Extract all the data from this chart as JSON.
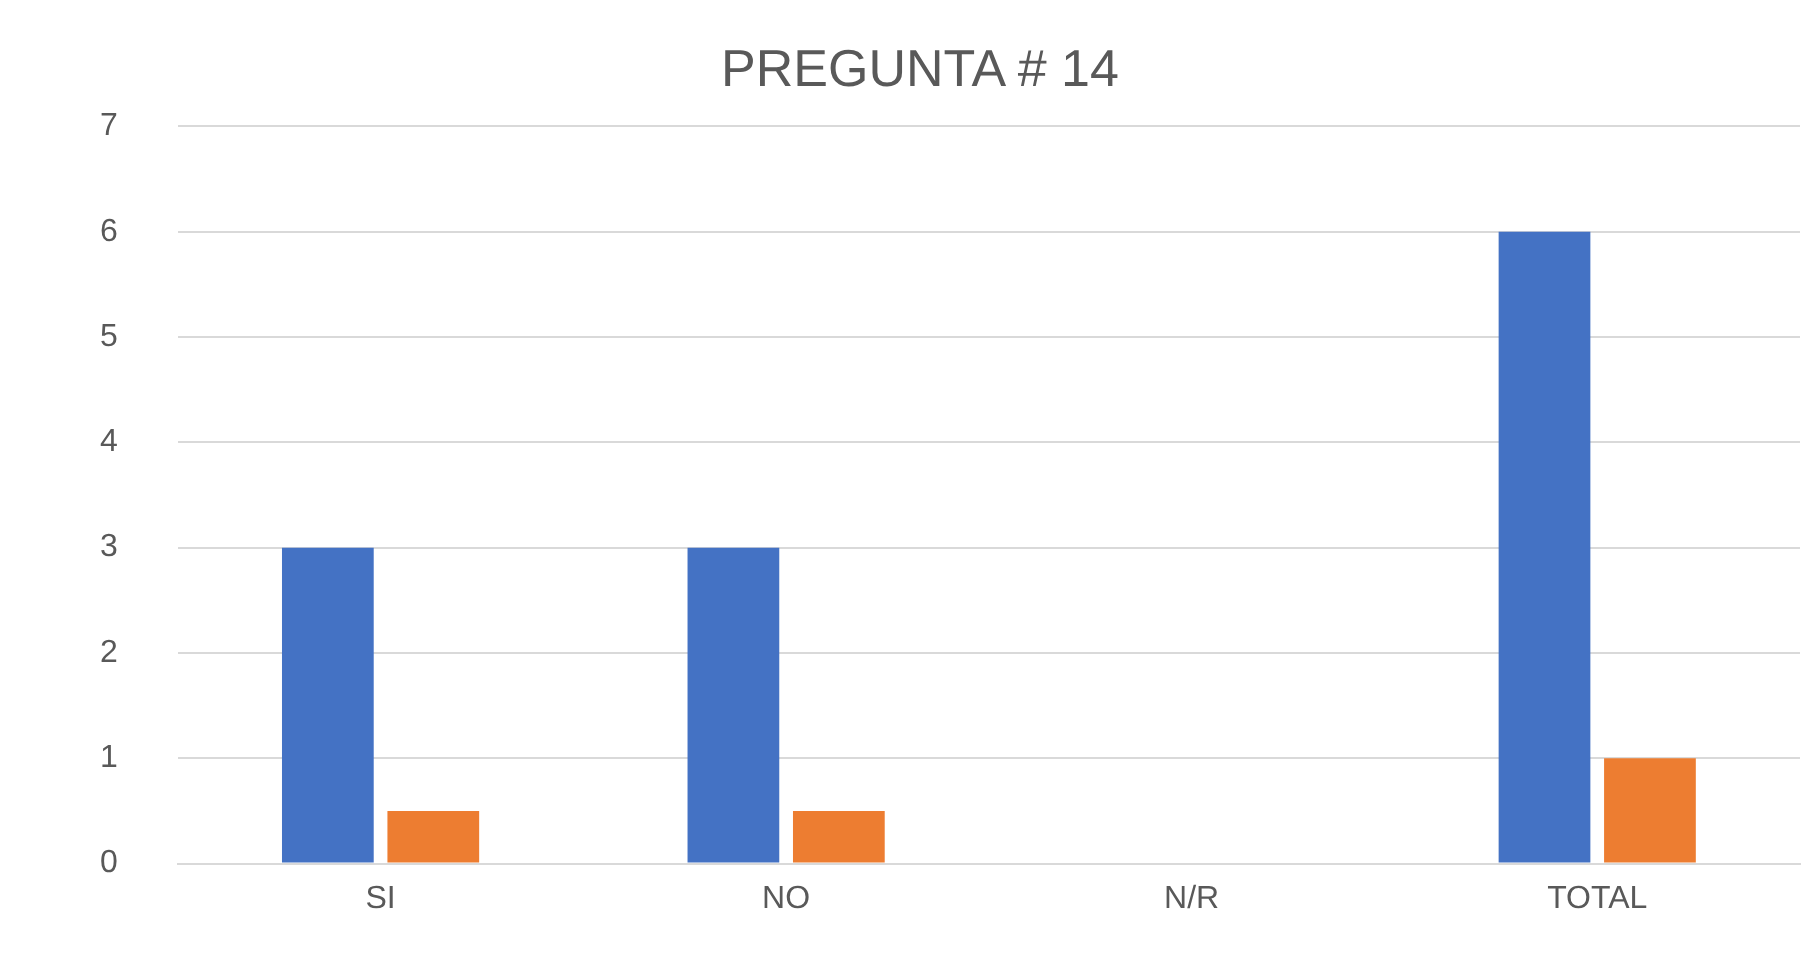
{
  "chart_data": {
    "type": "bar",
    "title": "PREGUNTA # 14",
    "categories": [
      "SI",
      "NO",
      "N/R",
      "TOTAL"
    ],
    "series": [
      {
        "color": "#4472c4",
        "values": [
          3,
          3,
          0,
          6
        ]
      },
      {
        "color": "#ed7d31",
        "values": [
          0.5,
          0.5,
          0,
          1
        ]
      }
    ],
    "ylim": [
      0,
      7
    ],
    "yticks": [
      0,
      1,
      2,
      3,
      4,
      5,
      6,
      7
    ],
    "grid": "y",
    "legend": false
  }
}
